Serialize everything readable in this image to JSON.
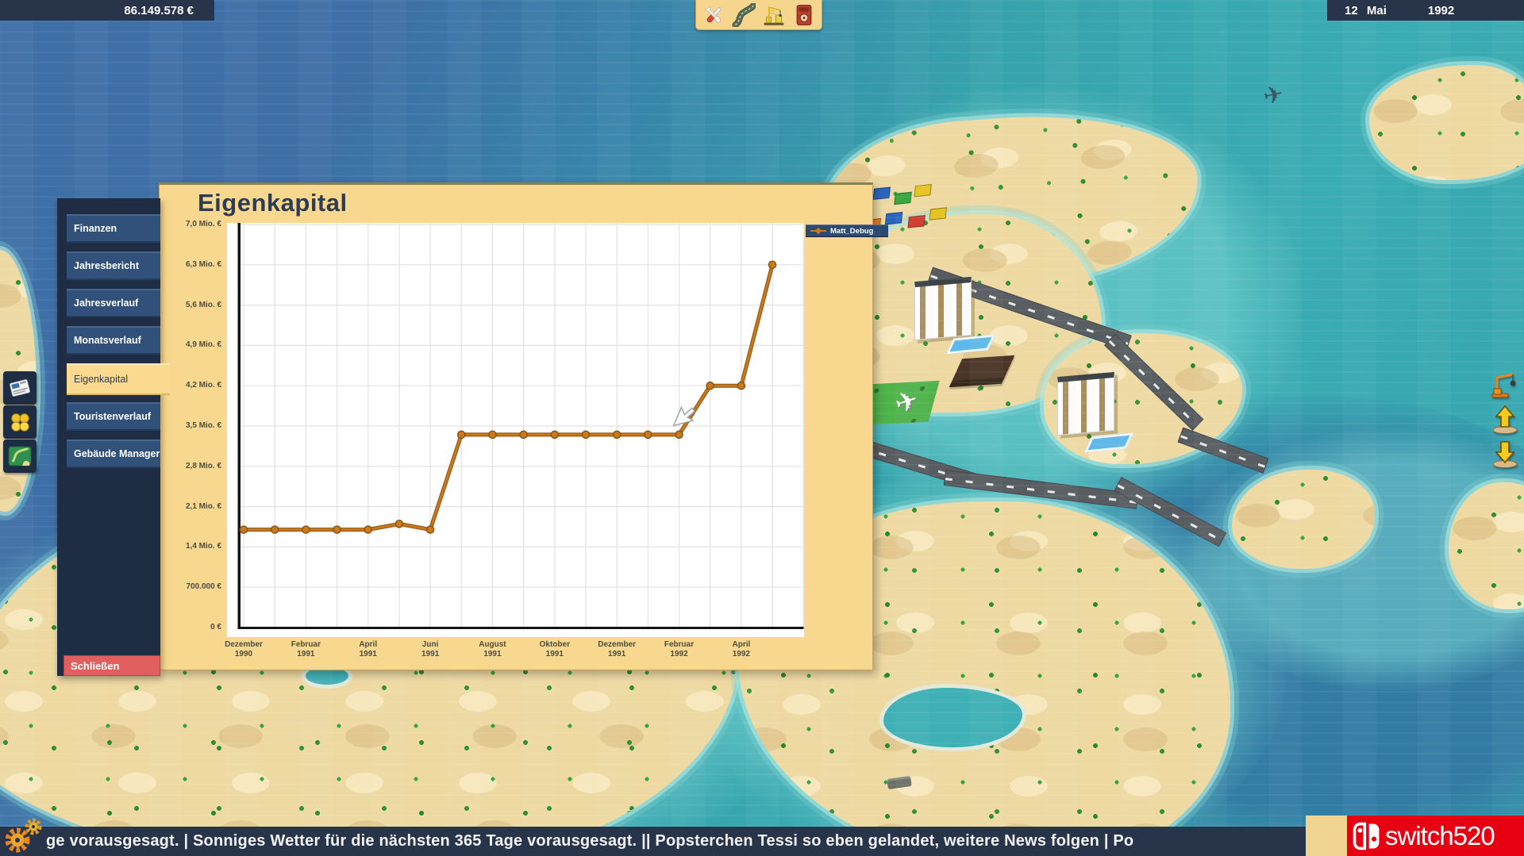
{
  "hud": {
    "money": "86.149.578 €",
    "date": {
      "day_month": "12 Mai",
      "year": "1992"
    },
    "toolbar_icons": [
      "tools-icon",
      "road-icon",
      "construction-icon",
      "catalog-icon"
    ],
    "dock_left_icons": [
      "news-icon",
      "finance-icon",
      "minimap-icon"
    ],
    "dock_right_icons": [
      "demolish-crane-icon",
      "raise-land-icon",
      "lower-land-icon"
    ]
  },
  "finance_window": {
    "title": "Eigenkapital",
    "menu_items": [
      {
        "label": "Finanzen",
        "active": false
      },
      {
        "label": "Jahresbericht",
        "active": false
      },
      {
        "label": "Jahresverlauf",
        "active": false
      },
      {
        "label": "Monatsverlauf",
        "active": false
      },
      {
        "label": "Eigenkapital",
        "active": true
      },
      {
        "label": "Touristenverlauf",
        "active": false
      },
      {
        "label": "Gebäude Manager",
        "active": false
      }
    ],
    "close_label": "Schließen",
    "legend_label": "Matt_Debug"
  },
  "chart_data": {
    "type": "line",
    "title": "Eigenkapital",
    "xlabel": "",
    "ylabel": "",
    "ylim": [
      0,
      7000000
    ],
    "grid": true,
    "legend_position": "top-right",
    "series": [
      {
        "name": "Matt_Debug",
        "color": "#c8791e",
        "months": [
          "Dezember 1990",
          "Januar 1991",
          "Februar 1991",
          "März 1991",
          "April 1991",
          "Mai 1991",
          "Juni 1991",
          "Juli 1991",
          "August 1991",
          "September 1991",
          "Oktober 1991",
          "November 1991",
          "Dezember 1991",
          "Januar 1992",
          "Februar 1992",
          "März 1992",
          "April 1992",
          "Mai 1992"
        ],
        "values_eur": [
          1700000,
          1700000,
          1700000,
          1700000,
          1700000,
          1800000,
          1700000,
          3350000,
          3350000,
          3350000,
          3350000,
          3350000,
          3350000,
          3350000,
          3350000,
          4200000,
          4200000,
          6300000
        ]
      }
    ],
    "y_tick_labels": [
      "7,0 Mio. €",
      "6,3 Mio. €",
      "5,6 Mio. €",
      "4,9 Mio. €",
      "4,2 Mio. €",
      "3,5 Mio. €",
      "2,8 Mio. €",
      "2,1 Mio. €",
      "1,4 Mio. €",
      "700.000 €",
      "0 €"
    ],
    "x_tick_labels": [
      [
        "Dezember",
        "1990"
      ],
      [
        "Februar",
        "1991"
      ],
      [
        "April",
        "1991"
      ],
      [
        "Juni",
        "1991"
      ],
      [
        "August",
        "1991"
      ],
      [
        "Oktober",
        "1991"
      ],
      [
        "Dezember",
        "1991"
      ],
      [
        "Februar",
        "1992"
      ],
      [
        "April",
        "1992"
      ]
    ]
  },
  "ticker": {
    "text": "ge vorausgesagt.    |    Sonniges Wetter für die nächsten 365 Tage vorausgesagt.    ||    Popsterchen Tessi so eben gelandet, weitere News folgen    |    Po"
  },
  "watermark": {
    "text": "switch520"
  }
}
